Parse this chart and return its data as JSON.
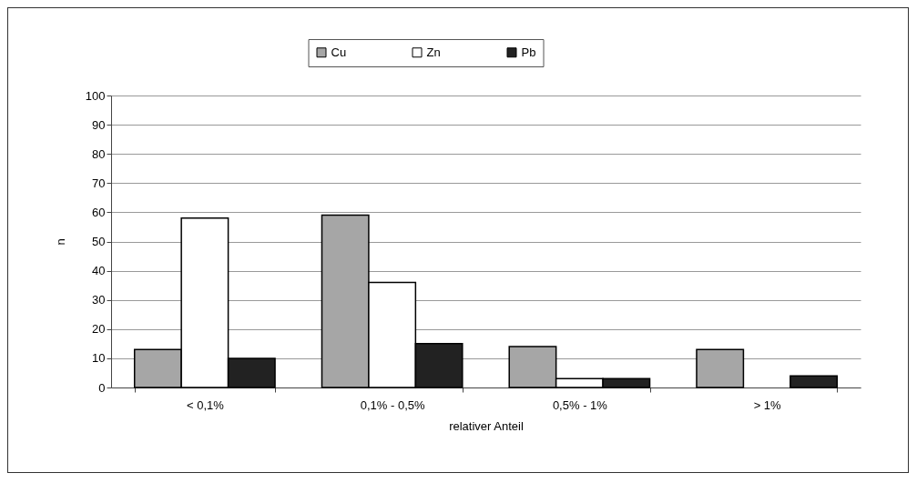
{
  "chart_data": {
    "type": "bar",
    "xlabel": "relativer Anteil",
    "ylabel": "n",
    "categories": [
      "< 0,1%",
      "0,1% - 0,5%",
      "0,5% - 1%",
      "> 1%"
    ],
    "series": [
      {
        "name": "Cu",
        "color": "#a6a6a6",
        "values": [
          13,
          59,
          14,
          13
        ]
      },
      {
        "name": "Zn",
        "color": "#ffffff",
        "values": [
          58,
          36,
          3,
          0
        ]
      },
      {
        "name": "Pb",
        "color": "#222222",
        "values": [
          10,
          15,
          3,
          4
        ]
      }
    ],
    "ylim": [
      0,
      100
    ],
    "yticks": [
      0,
      10,
      20,
      30,
      40,
      50,
      60,
      70,
      80,
      90,
      100
    ],
    "grid": "y",
    "legend": "top"
  }
}
